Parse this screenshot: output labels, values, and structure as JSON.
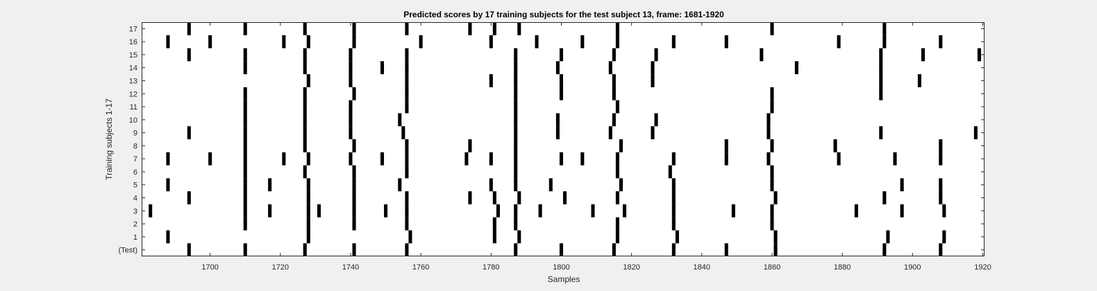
{
  "chart_data": {
    "type": "heatmap",
    "title": "Predicted scores by 17 training subjects for the test subject 13, frame: 1681-1920",
    "xlabel": "Samples",
    "ylabel": "Training subjects 1-17",
    "xlim": [
      1681,
      1920
    ],
    "x_ticks": [
      1700,
      1720,
      1740,
      1760,
      1780,
      1800,
      1820,
      1840,
      1860,
      1880,
      1900,
      1920
    ],
    "y_tick_labels": [
      "(Test)",
      "1",
      "2",
      "3",
      "4",
      "5",
      "6",
      "7",
      "8",
      "9",
      "10",
      "11",
      "12",
      "13",
      "14",
      "15",
      "16",
      "17"
    ],
    "grid": false,
    "legend": "none",
    "colors": {
      "background": "#f0f0f0",
      "plot_area": "#ffffff",
      "mark": "#000000",
      "text": "#262626"
    },
    "rows": [
      {
        "label": "(Test)",
        "x": [
          1694,
          1710,
          1727,
          1741,
          1756,
          1787,
          1800,
          1815,
          1832,
          1847,
          1861,
          1892,
          1908
        ]
      },
      {
        "label": "1",
        "x": [
          1688,
          1728,
          1757,
          1781,
          1788,
          1816,
          1833,
          1861,
          1893,
          1909
        ]
      },
      {
        "label": "2",
        "x": [
          1710,
          1728,
          1741,
          1756,
          1781,
          1787,
          1816,
          1832,
          1860
        ]
      },
      {
        "label": "3",
        "x": [
          1683,
          1710,
          1717,
          1728,
          1731,
          1741,
          1750,
          1756,
          1782,
          1787,
          1794,
          1809,
          1818,
          1832,
          1849,
          1860,
          1884,
          1897,
          1909
        ]
      },
      {
        "label": "4",
        "x": [
          1694,
          1710,
          1728,
          1741,
          1756,
          1774,
          1781,
          1788,
          1801,
          1816,
          1832,
          1861,
          1892,
          1908
        ]
      },
      {
        "label": "5",
        "x": [
          1688,
          1710,
          1717,
          1728,
          1741,
          1754,
          1780,
          1787,
          1797,
          1817,
          1832,
          1860,
          1897,
          1908
        ]
      },
      {
        "label": "6",
        "x": [
          1710,
          1727,
          1741,
          1756,
          1787,
          1816,
          1831,
          1860
        ]
      },
      {
        "label": "7",
        "x": [
          1688,
          1700,
          1710,
          1721,
          1728,
          1740,
          1749,
          1756,
          1773,
          1780,
          1787,
          1800,
          1806,
          1816,
          1832,
          1847,
          1859,
          1879,
          1895,
          1908
        ]
      },
      {
        "label": "8",
        "x": [
          1710,
          1727,
          1741,
          1756,
          1774,
          1787,
          1817,
          1847,
          1860,
          1878,
          1908
        ]
      },
      {
        "label": "9",
        "x": [
          1694,
          1710,
          1727,
          1740,
          1755,
          1787,
          1799,
          1814,
          1826,
          1859,
          1891,
          1918
        ]
      },
      {
        "label": "10",
        "x": [
          1710,
          1727,
          1740,
          1754,
          1787,
          1799,
          1815,
          1827,
          1859
        ]
      },
      {
        "label": "11",
        "x": [
          1710,
          1727,
          1740,
          1756,
          1787,
          1816,
          1860
        ]
      },
      {
        "label": "12",
        "x": [
          1710,
          1727,
          1741,
          1756,
          1787,
          1800,
          1815,
          1860,
          1891
        ]
      },
      {
        "label": "13",
        "x": [
          1728,
          1740,
          1756,
          1780,
          1787,
          1800,
          1815,
          1826,
          1891,
          1902
        ]
      },
      {
        "label": "14",
        "x": [
          1710,
          1727,
          1740,
          1749,
          1756,
          1787,
          1799,
          1814,
          1826,
          1867,
          1891
        ]
      },
      {
        "label": "15",
        "x": [
          1694,
          1710,
          1727,
          1740,
          1756,
          1787,
          1800,
          1815,
          1827,
          1857,
          1891,
          1903,
          1919
        ]
      },
      {
        "label": "16",
        "x": [
          1688,
          1700,
          1721,
          1728,
          1741,
          1760,
          1780,
          1793,
          1806,
          1816,
          1832,
          1847,
          1879,
          1892,
          1908
        ]
      },
      {
        "label": "17",
        "x": [
          1694,
          1710,
          1727,
          1741,
          1756,
          1774,
          1781,
          1788,
          1816,
          1860,
          1892
        ]
      }
    ]
  }
}
